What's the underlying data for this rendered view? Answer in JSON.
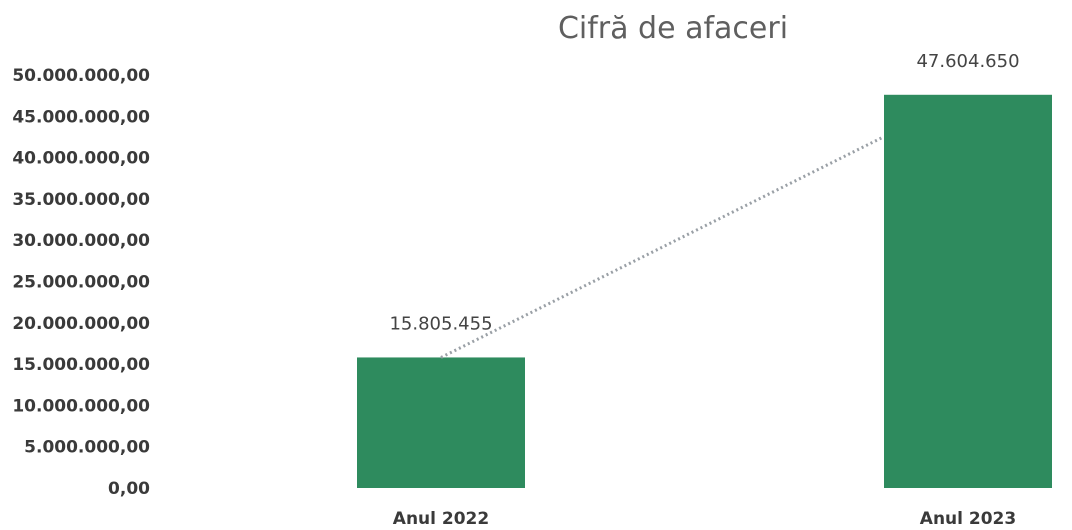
{
  "chart_data": {
    "type": "bar",
    "title": "Cifră de afaceri",
    "xlabel": "",
    "ylabel": "",
    "categories": [
      "Anul 2022",
      "Anul 2023"
    ],
    "values": [
      15805455,
      47604650
    ],
    "data_labels": [
      "15.805.455",
      "47.604.650"
    ],
    "ylim": [
      0,
      50000000
    ],
    "y_ticks": [
      0,
      5000000,
      10000000,
      15000000,
      20000000,
      25000000,
      30000000,
      35000000,
      40000000,
      45000000,
      50000000
    ],
    "y_tick_labels": [
      "0,00",
      "5.000.000,00",
      "10.000.000,00",
      "15.000.000,00",
      "20.000.000,00",
      "25.000.000,00",
      "30.000.000,00",
      "35.000.000,00",
      "40.000.000,00",
      "45.000.000,00",
      "50.000.000,00"
    ],
    "trendline": true,
    "grid": false,
    "legend": "none",
    "bar_color": "#2e8b5e",
    "trendline_color": "#9aa0a6"
  }
}
